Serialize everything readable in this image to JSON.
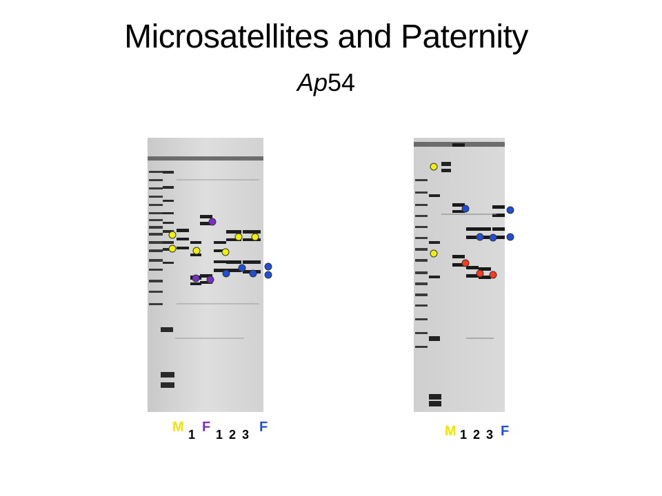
{
  "title": "Microsatellites and Paternity",
  "subtitle_italic": "Ap",
  "subtitle_rest": "54",
  "colors": {
    "mother": "#f0f000",
    "father1": "#7a2ec8",
    "father2": "#1f4fd8",
    "offspring_alt": "#ff3b1f",
    "label_black": "#000000"
  },
  "left_gel": {
    "labels": [
      "M",
      "1",
      "F",
      "1",
      "2",
      "3",
      "F"
    ]
  },
  "right_gel": {
    "labels": [
      "M",
      "1",
      "2",
      "3",
      "F"
    ]
  }
}
